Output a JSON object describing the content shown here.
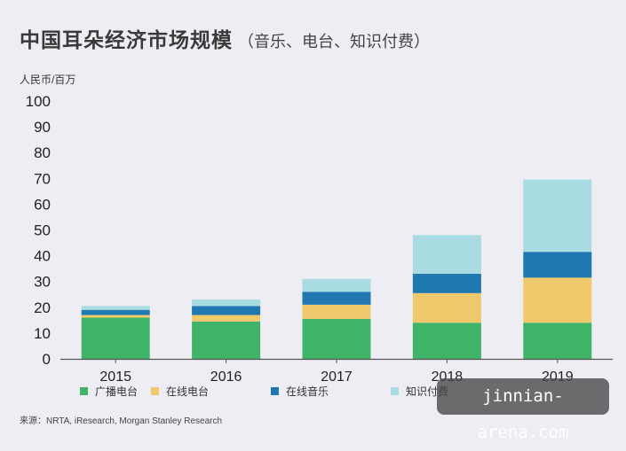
{
  "title": "中国耳朵经济市场规模",
  "subtitle": "（音乐、电台、知识付费）",
  "unit_label": "人民币/百万",
  "source": "来源：NRTA, iResearch, Morgan Stanley Research",
  "watermark": "jinnian-arena.com",
  "chart_data": {
    "type": "bar",
    "stacked": true,
    "categories": [
      "2015",
      "2016",
      "2017",
      "2018",
      "2019"
    ],
    "series": [
      {
        "name": "广播电台",
        "color": "#3fb368",
        "values": [
          16,
          14.5,
          15.5,
          14,
          14
        ]
      },
      {
        "name": "在线电台",
        "color": "#efc96b",
        "values": [
          1,
          2.5,
          5.5,
          11.5,
          17.5
        ]
      },
      {
        "name": "在线音乐",
        "color": "#1f78b0",
        "values": [
          2,
          3.5,
          5,
          7.5,
          10
        ]
      },
      {
        "name": "知识付费",
        "color": "#a8dbe2",
        "values": [
          1.5,
          2.5,
          5,
          15,
          28
        ]
      }
    ],
    "ylim": [
      0,
      100
    ],
    "yticks": [
      0,
      10,
      20,
      30,
      40,
      50,
      60,
      70,
      80,
      90,
      100
    ],
    "xlabel": "",
    "ylabel": "",
    "grid": false,
    "legend_position": "bottom"
  }
}
